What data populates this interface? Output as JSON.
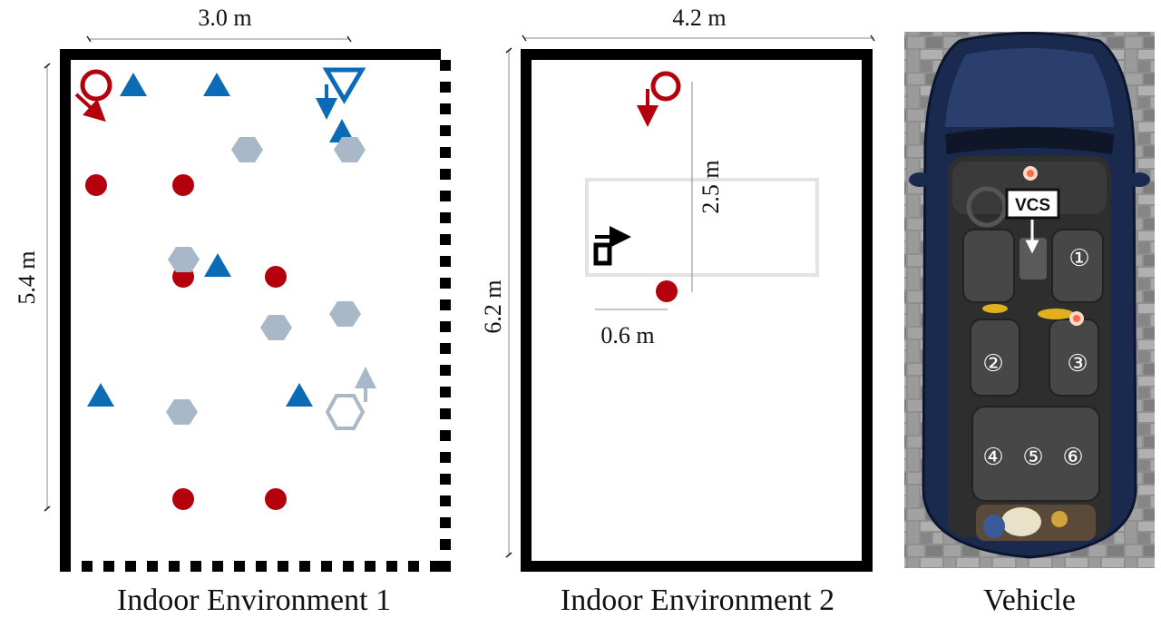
{
  "colors": {
    "receiver": "#b3000c",
    "transmitter": "#0b6cb5",
    "hexagon": "#a9b8c9",
    "wall": "#000000"
  },
  "env1": {
    "caption": "Indoor Environment 1",
    "width_label": "3.0 m",
    "height_label": "5.4 m",
    "legend_icons": [
      "receiver-icon",
      "transmitter-icon",
      "obstacle-hexagon-icon",
      "door-dashed-wall"
    ]
  },
  "env2": {
    "caption": "Indoor Environment 2",
    "width_label": "4.2 m",
    "height_label": "6.2 m",
    "inner_height_label": "2.5 m",
    "offset_label": "0.6 m"
  },
  "vehicle": {
    "caption": "Vehicle",
    "vcs_label": "VCS",
    "seats": [
      "①",
      "②",
      "③",
      "④",
      "⑤",
      "⑥"
    ]
  }
}
